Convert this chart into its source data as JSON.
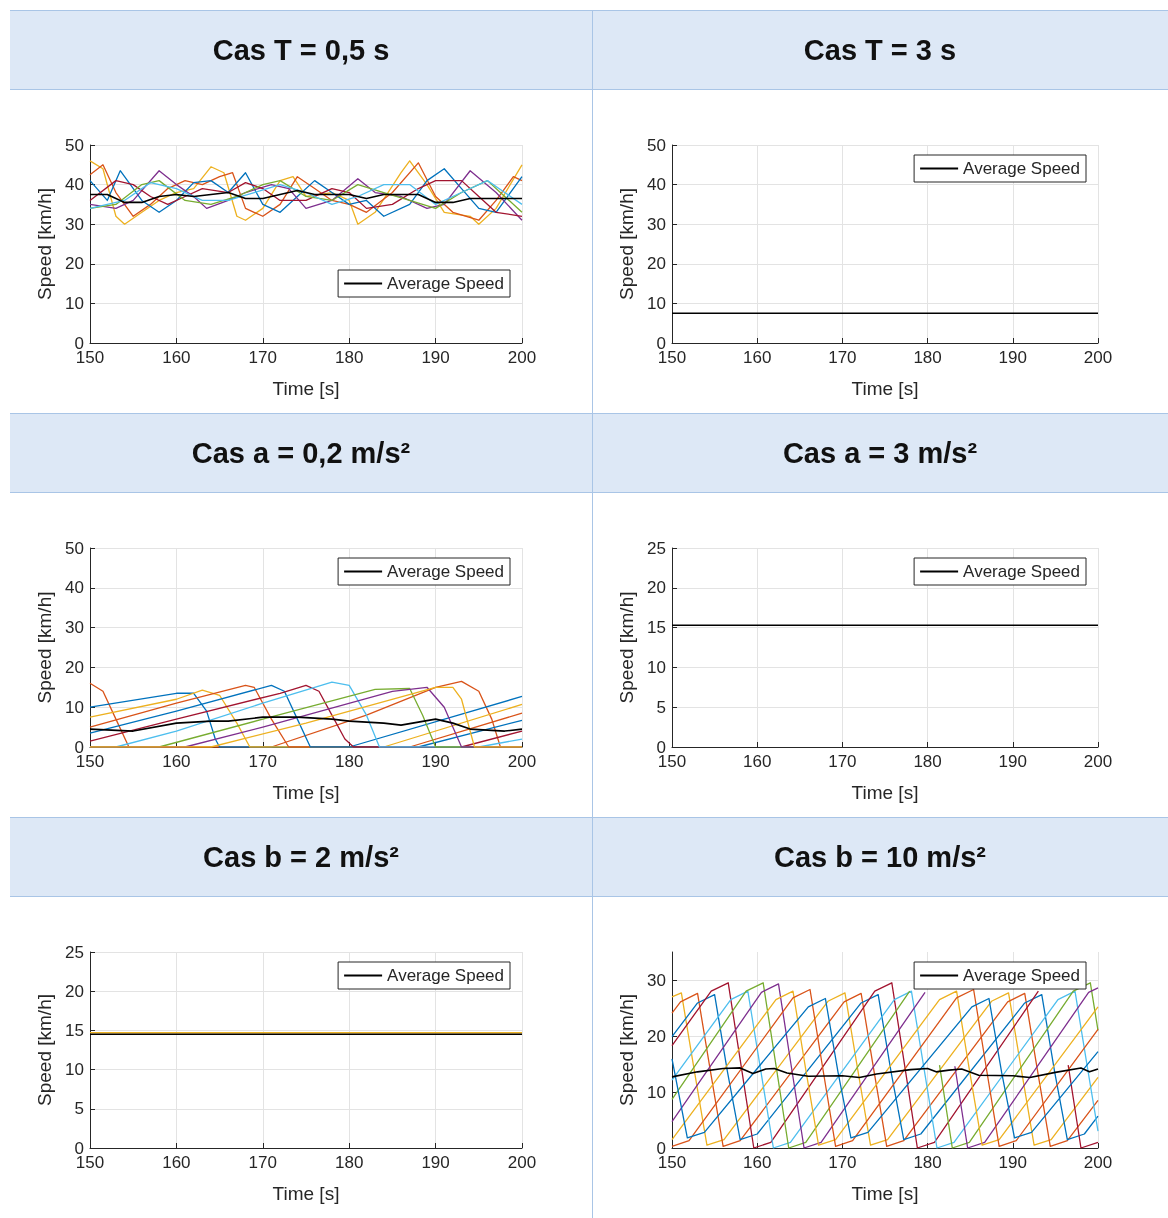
{
  "chart_data": [
    {
      "type": "line",
      "title": "Cas T = 0,5 s",
      "xlabel": "Time [s]",
      "ylabel": "Speed [km/h]",
      "xlim": [
        150,
        200
      ],
      "xticks": [
        150,
        160,
        170,
        180,
        190,
        200
      ],
      "ylim": [
        0,
        50
      ],
      "yticks": [
        0,
        10,
        20,
        30,
        40,
        50
      ],
      "grid": true,
      "legend": "bottom right",
      "series": [
        {
          "color": "#edb120",
          "x": [
            150,
            151.5,
            153,
            154,
            156,
            158,
            160,
            162,
            164,
            165.5,
            167,
            168,
            170,
            172,
            173.5,
            175,
            178,
            180,
            181,
            183,
            186,
            187,
            189,
            191,
            194,
            195,
            197,
            200
          ],
          "values": [
            46,
            44,
            32,
            30,
            33,
            36,
            38,
            39,
            44.5,
            43,
            32,
            31,
            34,
            41,
            42,
            37,
            38,
            36,
            30,
            33,
            43,
            46,
            40,
            33,
            32,
            30,
            34,
            45
          ]
        },
        {
          "color": "#d95319",
          "x": [
            150,
            151.5,
            153,
            155,
            157,
            159,
            161,
            163,
            165,
            166.5,
            168,
            170,
            172,
            174,
            176,
            178,
            180,
            182,
            185,
            188,
            190,
            192,
            195,
            197,
            199,
            200
          ],
          "values": [
            42.5,
            45,
            38,
            32,
            35,
            39,
            41,
            40,
            42,
            43,
            34,
            32,
            35,
            42,
            39,
            36,
            35,
            33,
            38,
            45.5,
            37,
            33,
            31,
            36,
            42,
            41
          ]
        },
        {
          "color": "#0072bd",
          "x": [
            150,
            152,
            153.5,
            156,
            158,
            160,
            162,
            164,
            166,
            168,
            170,
            172,
            174,
            176,
            178,
            180,
            182,
            184,
            187,
            189,
            191,
            193,
            195,
            197,
            200
          ],
          "values": [
            41,
            36,
            43.5,
            36,
            33,
            36,
            40.5,
            41,
            38,
            43,
            35,
            33,
            37,
            41,
            38,
            35,
            36,
            32,
            35,
            41,
            44,
            39,
            34,
            33,
            42
          ]
        },
        {
          "color": "#7e2f8e",
          "x": [
            150,
            153,
            155,
            158,
            160,
            162,
            163.5,
            166,
            168,
            171,
            173,
            175,
            178,
            181,
            183,
            186,
            189,
            191,
            194,
            197,
            200
          ],
          "values": [
            35,
            34,
            36,
            43.5,
            40,
            37,
            34,
            36,
            38,
            40,
            39,
            34,
            36,
            41.5,
            38,
            37,
            34,
            35,
            43.5,
            38,
            31
          ]
        },
        {
          "color": "#a2142f",
          "x": [
            150,
            153,
            155,
            157,
            159,
            161,
            163,
            166,
            168,
            170,
            172,
            175,
            178,
            180,
            182,
            185,
            188,
            190,
            193,
            195,
            197,
            200
          ],
          "values": [
            36,
            41,
            40,
            37,
            35,
            37,
            39,
            38,
            40.5,
            39,
            36,
            36,
            39,
            38,
            34,
            35,
            39,
            41,
            41,
            37,
            33,
            32
          ]
        },
        {
          "color": "#77ac30",
          "x": [
            150,
            153,
            156,
            158,
            161,
            164,
            167,
            170,
            172,
            175,
            178,
            181,
            184,
            187,
            190,
            193,
            196,
            198,
            200
          ],
          "values": [
            34,
            35,
            40,
            41,
            36,
            35,
            37,
            40,
            41,
            37,
            36,
            40,
            38,
            36,
            34,
            38,
            41,
            37,
            33
          ]
        },
        {
          "color": "#4dbeee",
          "x": [
            150,
            154,
            157,
            160,
            163,
            166,
            169,
            172,
            175,
            178,
            181,
            184,
            187,
            190,
            193,
            196,
            198,
            200
          ],
          "values": [
            34,
            36,
            40.5,
            39,
            36,
            36,
            38,
            40,
            38,
            35,
            37,
            40,
            40,
            35,
            38,
            41,
            38,
            35
          ]
        },
        {
          "name": "Average Speed",
          "color": "#000000",
          "x": [
            150,
            152,
            154,
            156,
            158,
            160,
            162,
            164,
            166,
            168,
            170,
            172,
            174,
            176,
            178,
            180,
            182,
            184,
            186,
            188,
            190,
            192,
            194,
            196,
            198,
            200
          ],
          "values": [
            37.5,
            37.5,
            35.5,
            35.5,
            37,
            37.5,
            37,
            37.5,
            38,
            36.5,
            36.5,
            37.5,
            38.5,
            37.5,
            37.5,
            37.5,
            36.5,
            37.5,
            37.5,
            37.5,
            35.5,
            35.5,
            36.5,
            36.5,
            36.5,
            36.5
          ]
        }
      ]
    },
    {
      "type": "line",
      "title": "Cas T = 3 s",
      "xlabel": "Time [s]",
      "ylabel": "Speed [km/h]",
      "xlim": [
        150,
        200
      ],
      "xticks": [
        150,
        160,
        170,
        180,
        190,
        200
      ],
      "ylim": [
        0,
        50
      ],
      "yticks": [
        0,
        10,
        20,
        30,
        40,
        50
      ],
      "grid": true,
      "legend": "top right",
      "series": [
        {
          "name": "Average Speed",
          "color": "#000000",
          "x": [
            150,
            200
          ],
          "values": [
            7.5,
            7.5
          ]
        }
      ]
    },
    {
      "type": "line",
      "title": "Cas a = 0,2 m/s²",
      "xlabel": "Time [s]",
      "ylabel": "Speed [km/h]",
      "xlim": [
        150,
        200
      ],
      "xticks": [
        150,
        160,
        170,
        180,
        190,
        200
      ],
      "ylim": [
        0,
        50
      ],
      "yticks": [
        0,
        10,
        20,
        30,
        40,
        50
      ],
      "grid": true,
      "legend": "top right",
      "series": [
        {
          "color": "#d95319",
          "x": [
            150,
            151.5,
            153,
            154.5,
            171,
            182,
            190,
            193,
            195,
            196.5,
            197.5,
            200
          ],
          "values": [
            16,
            14,
            7,
            0,
            0,
            8,
            15,
            16.5,
            14,
            7,
            0,
            0
          ]
        },
        {
          "color": "#0072bd",
          "x": [
            150,
            160,
            162,
            163.5,
            164.5,
            165,
            180,
            200
          ],
          "values": [
            10,
            13.5,
            13.5,
            9,
            2,
            0,
            0,
            12.7
          ]
        },
        {
          "color": "#edb120",
          "x": [
            150,
            160,
            163,
            165,
            167,
            168.5,
            184,
            200
          ],
          "values": [
            7.5,
            12,
            14.3,
            13,
            6,
            0,
            0,
            10.7
          ]
        },
        {
          "color": "#d95319",
          "x": [
            150,
            160,
            168,
            169,
            171,
            173,
            187,
            200
          ],
          "values": [
            5,
            11,
            15.5,
            15,
            7,
            0,
            0,
            8.5
          ]
        },
        {
          "color": "#0072bd",
          "x": [
            150,
            160,
            171,
            172.5,
            174,
            175.5,
            188,
            200
          ],
          "values": [
            3.5,
            9,
            15.5,
            14,
            7,
            0,
            0,
            6.7
          ]
        },
        {
          "color": "#a2142f",
          "x": [
            150,
            160,
            172,
            175,
            176.5,
            178,
            179.5,
            180.5,
            193,
            200
          ],
          "values": [
            1.5,
            7,
            13.5,
            15.5,
            14,
            8,
            2,
            0,
            0,
            4
          ]
        },
        {
          "color": "#4dbeee",
          "x": [
            150,
            153,
            160,
            170,
            178,
            180,
            182,
            183.5,
            195,
            200
          ],
          "values": [
            0,
            0,
            4,
            11,
            16.3,
            15.5,
            8,
            0,
            0,
            2
          ]
        },
        {
          "color": "#77ac30",
          "x": [
            150,
            158,
            170,
            183,
            187,
            188.5,
            190,
            200
          ],
          "values": [
            0,
            0,
            7,
            14.5,
            14.7,
            8,
            0,
            0
          ]
        },
        {
          "color": "#7e2f8e",
          "x": [
            150,
            161,
            170,
            185,
            189,
            191,
            193,
            200
          ],
          "values": [
            0,
            0,
            5,
            14,
            15,
            10,
            0,
            0
          ]
        },
        {
          "color": "#edb120",
          "x": [
            150,
            164,
            175,
            190,
            192,
            193,
            194.5,
            200
          ],
          "values": [
            0,
            0,
            6,
            15,
            15,
            12,
            0,
            0
          ]
        },
        {
          "name": "Average Speed",
          "color": "#000000",
          "x": [
            150,
            155,
            160,
            164,
            166,
            170,
            174,
            178,
            180,
            184,
            186,
            190,
            192,
            194,
            198,
            200
          ],
          "values": [
            4.5,
            4,
            6,
            6.5,
            6.5,
            7.5,
            7.5,
            7,
            6.5,
            6,
            5.5,
            7,
            6,
            4.5,
            4,
            4.5
          ]
        }
      ]
    },
    {
      "type": "line",
      "title": "Cas a = 3 m/s²",
      "xlabel": "Time [s]",
      "ylabel": "Speed [km/h]",
      "xlim": [
        150,
        200
      ],
      "xticks": [
        150,
        160,
        170,
        180,
        190,
        200
      ],
      "ylim": [
        0,
        25
      ],
      "yticks": [
        0,
        5,
        10,
        15,
        20,
        25
      ],
      "grid": true,
      "legend": "top right",
      "series": [
        {
          "name": "Average Speed",
          "color": "#000000",
          "x": [
            150,
            200
          ],
          "values": [
            15.3,
            15.3
          ]
        }
      ]
    },
    {
      "type": "line",
      "title": "Cas b = 2 m/s²",
      "xlabel": "Time [s]",
      "ylabel": "Speed [km/h]",
      "xlim": [
        150,
        200
      ],
      "xticks": [
        150,
        160,
        170,
        180,
        190,
        200
      ],
      "ylim": [
        0,
        25
      ],
      "yticks": [
        0,
        5,
        10,
        15,
        20,
        25
      ],
      "grid": true,
      "legend": "top right",
      "series": [
        {
          "color": "#edb120",
          "x": [
            150,
            200
          ],
          "values": [
            14.7,
            14.7
          ]
        },
        {
          "name": "Average Speed",
          "color": "#000000",
          "x": [
            150,
            200
          ],
          "values": [
            14.5,
            14.5
          ]
        }
      ]
    },
    {
      "type": "line",
      "title": "Cas b = 10 m/s²",
      "xlabel": "Time [s]",
      "ylabel": "Speed [km/h]",
      "xlim": [
        150,
        200
      ],
      "xticks": [
        150,
        160,
        170,
        180,
        190,
        200
      ],
      "ylim": [
        0,
        35
      ],
      "yticks": [
        0,
        10,
        20,
        30
      ],
      "grid": true,
      "legend": "top right",
      "series": [
        {
          "color": "#edb120",
          "x": [
            150,
            151.1,
            152.6,
            154.1,
            156.1,
            168.3,
            170.3,
            171.8,
            173.3,
            175.3,
            187.5,
            189.5,
            191,
            192.5,
            194.5,
            200
          ],
          "values": [
            27,
            27.7,
            14,
            0.5,
            1.5,
            26.2,
            27.7,
            14,
            0.5,
            1.5,
            26.2,
            27.7,
            14,
            0.5,
            1.5,
            12.6
          ]
        },
        {
          "color": "#d95319",
          "x": [
            150,
            151,
            153,
            154.5,
            156,
            158,
            170.2,
            172.2,
            173.7,
            175.2,
            177.2,
            189.4,
            191.4,
            192.9,
            194.4,
            196.4,
            200
          ],
          "values": [
            24.1,
            26.1,
            27.6,
            13.8,
            0.3,
            1.3,
            26.1,
            27.6,
            13.8,
            0.3,
            1.3,
            26.1,
            27.6,
            13.8,
            0.3,
            1.3,
            8.5
          ]
        },
        {
          "color": "#0072bd",
          "x": [
            150,
            153,
            155,
            156.5,
            158,
            160,
            172.2,
            174.2,
            175.7,
            177.2,
            179.2,
            191.4,
            193.4,
            194.9,
            196.4,
            198.4,
            200
          ],
          "values": [
            19.9,
            25.9,
            27.4,
            13.7,
            1.5,
            2.5,
            25.9,
            27.4,
            13.7,
            1.5,
            2.5,
            25.9,
            27.4,
            13.7,
            1.5,
            2.5,
            5.7
          ]
        },
        {
          "color": "#a2142f",
          "x": [
            150,
            154.6,
            156.6,
            158.1,
            159.6,
            161.6,
            173.8,
            175.8,
            177.3,
            178.8,
            180.8,
            193,
            195,
            196.5,
            198,
            200
          ],
          "values": [
            18.3,
            28,
            29.5,
            14.8,
            0,
            1,
            28,
            29.5,
            14.8,
            0,
            1,
            28,
            null,
            14.8,
            0,
            1
          ]
        },
        {
          "color": "#4dbeee",
          "x": [
            150,
            156.9,
            158.9,
            160.4,
            161.9,
            163.9,
            176.1,
            178.1,
            179.6,
            181.1,
            183.1,
            195.3,
            197.3,
            198.8,
            200
          ],
          "values": [
            12.1,
            26.5,
            28,
            14,
            0,
            1,
            26.5,
            28,
            14,
            0,
            1,
            26.5,
            28,
            14,
            3
          ]
        },
        {
          "color": "#77ac30",
          "x": [
            150,
            158.7,
            160.7,
            162.2,
            163.7,
            165.7,
            177.9,
            179.9,
            181.4,
            182.9,
            184.9,
            197.1,
            199.1,
            200
          ],
          "values": [
            8.7,
            28,
            29.5,
            14.8,
            0,
            1,
            28,
            null,
            14.8,
            0,
            1,
            28,
            29.5,
            21
          ]
        },
        {
          "color": "#7e2f8e",
          "x": [
            150,
            160.5,
            162.5,
            164,
            165.5,
            167.5,
            179.7,
            181.7,
            183.2,
            184.7,
            186.7,
            198.9,
            200
          ],
          "values": [
            4.7,
            27.8,
            29.3,
            14.6,
            0,
            1,
            27.8,
            null,
            14.6,
            0,
            1,
            27.8,
            28.6
          ]
        },
        {
          "color": "#edb120",
          "x": [
            150,
            162.2,
            164.2,
            165.7,
            167.2,
            169.2,
            181.4,
            183.4,
            184.9,
            186.4,
            188.4,
            200
          ],
          "values": [
            1.5,
            26.5,
            28,
            14,
            0.5,
            1.5,
            26.5,
            28,
            14,
            0.5,
            1.5,
            25.2
          ]
        },
        {
          "color": "#d95319",
          "x": [
            150,
            152,
            164.2,
            166.2,
            167.7,
            169.2,
            171.2,
            183.4,
            185.4,
            186.9,
            188.4,
            190.4,
            200
          ],
          "values": [
            0.3,
            1.3,
            26.8,
            28.3,
            14.2,
            0.3,
            1.3,
            26.8,
            28.3,
            14.2,
            0.3,
            1.3,
            21.2
          ]
        },
        {
          "color": "#0072bd",
          "x": [
            150,
            151.8,
            153.8,
            166,
            168,
            169.5,
            171,
            173,
            185.2,
            187.2,
            188.7,
            190.2,
            192.2,
            200
          ],
          "values": [
            15.9,
            1.8,
            2.8,
            25.2,
            26.7,
            13.4,
            1.8,
            2.8,
            25.2,
            26.7,
            13.4,
            1.8,
            2.8,
            17.2
          ]
        },
        {
          "name": "Average Speed",
          "color": "#000000",
          "x": [
            150,
            153,
            156,
            158,
            159.5,
            161,
            162,
            163.5,
            166,
            170,
            172,
            174,
            178,
            180,
            181,
            182.5,
            184,
            186,
            190,
            192,
            195,
            198,
            199,
            200
          ],
          "values": [
            12.7,
            13.6,
            14.2,
            14.3,
            13.3,
            14.1,
            14.2,
            13.4,
            12.8,
            12.9,
            12.6,
            13.2,
            14,
            14.2,
            13.6,
            13.9,
            14.1,
            13,
            12.9,
            12.6,
            13.5,
            14.3,
            13.6,
            14.1
          ]
        }
      ]
    }
  ]
}
